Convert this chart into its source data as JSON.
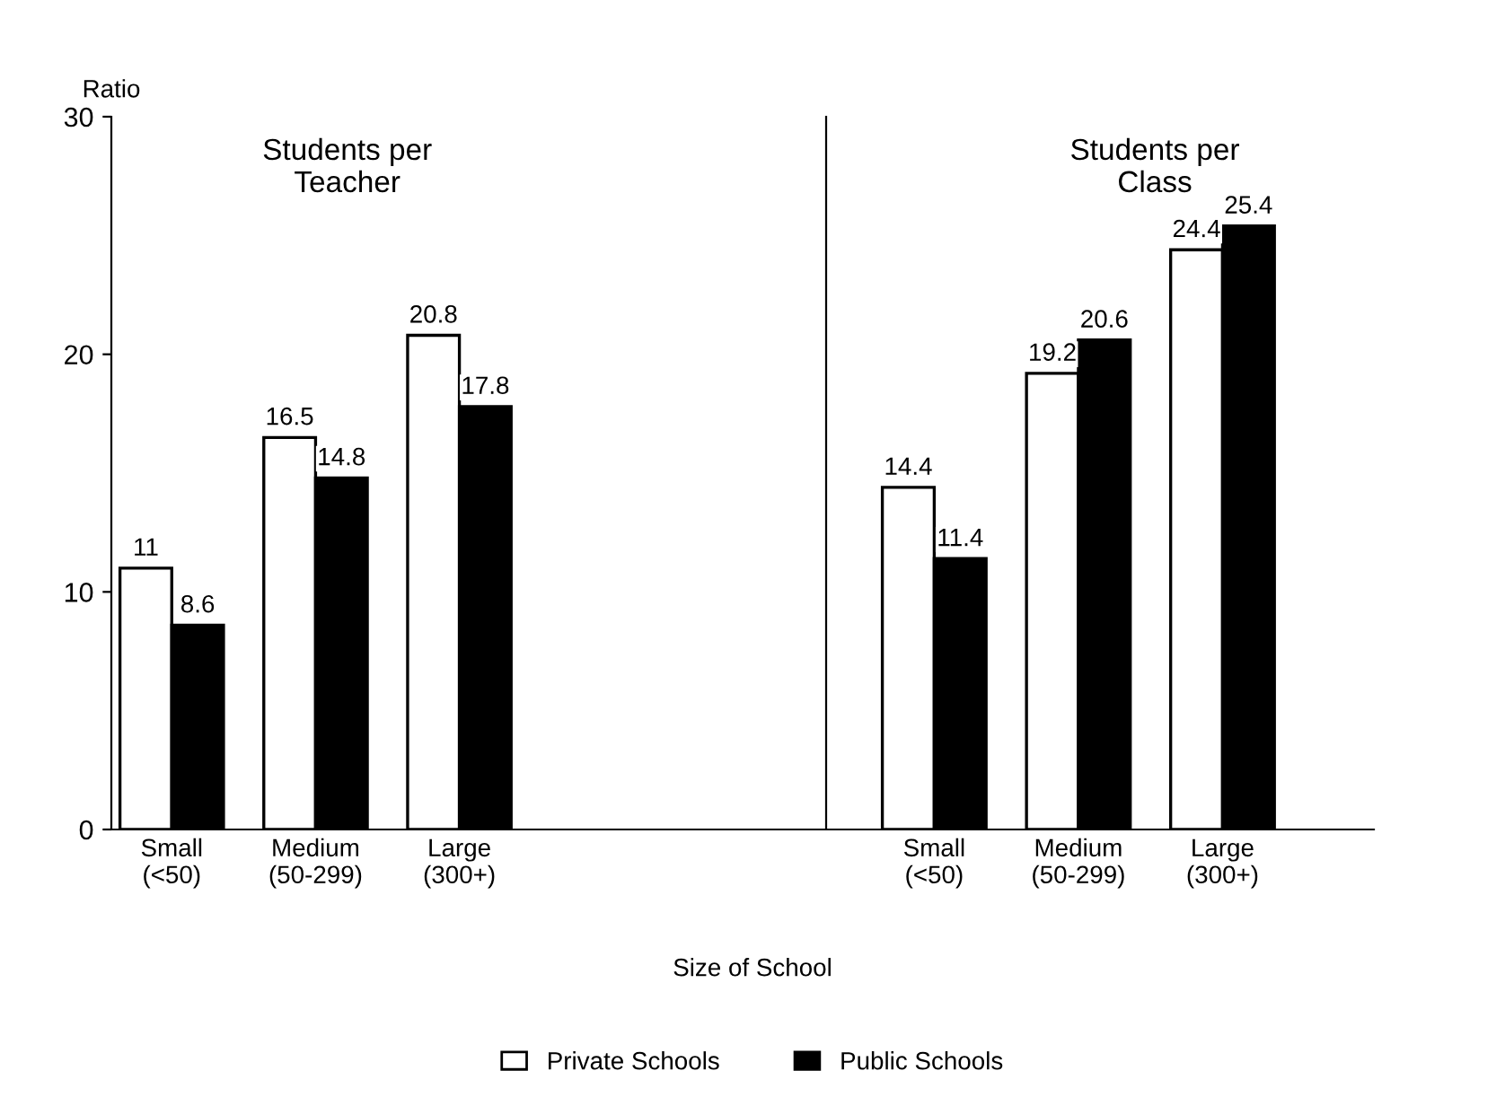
{
  "chart_data": [
    {
      "type": "bar",
      "title": "Students per\nTeacher",
      "ylabel": "Ratio",
      "xlabel": "Size of School",
      "categories": [
        "Small\n(<50)",
        "Medium\n(50-299)",
        "Large\n(300+)"
      ],
      "ylim": [
        0,
        30
      ],
      "yticks": [
        0,
        10,
        20,
        30
      ],
      "data_labels": true,
      "legend": "bottom",
      "series": [
        {
          "name": "Private Schools",
          "color": "#ffffff",
          "values": [
            11,
            16.5,
            20.8
          ]
        },
        {
          "name": "Public Schools",
          "color": "#000000",
          "values": [
            8.6,
            14.8,
            17.8
          ]
        }
      ]
    },
    {
      "type": "bar",
      "title": "Students per\nClass",
      "categories": [
        "Small\n(<50)",
        "Medium\n(50-299)",
        "Large\n(300+)"
      ],
      "ylim": [
        0,
        30
      ],
      "yticks": [
        0,
        10,
        20,
        30
      ],
      "tick_labels": "x",
      "data_labels": true,
      "series": [
        {
          "color": "#ffffff",
          "values": [
            14.4,
            19.2,
            24.4
          ]
        },
        {
          "color": "#000000",
          "values": [
            11.4,
            20.6,
            25.4
          ]
        }
      ]
    }
  ]
}
